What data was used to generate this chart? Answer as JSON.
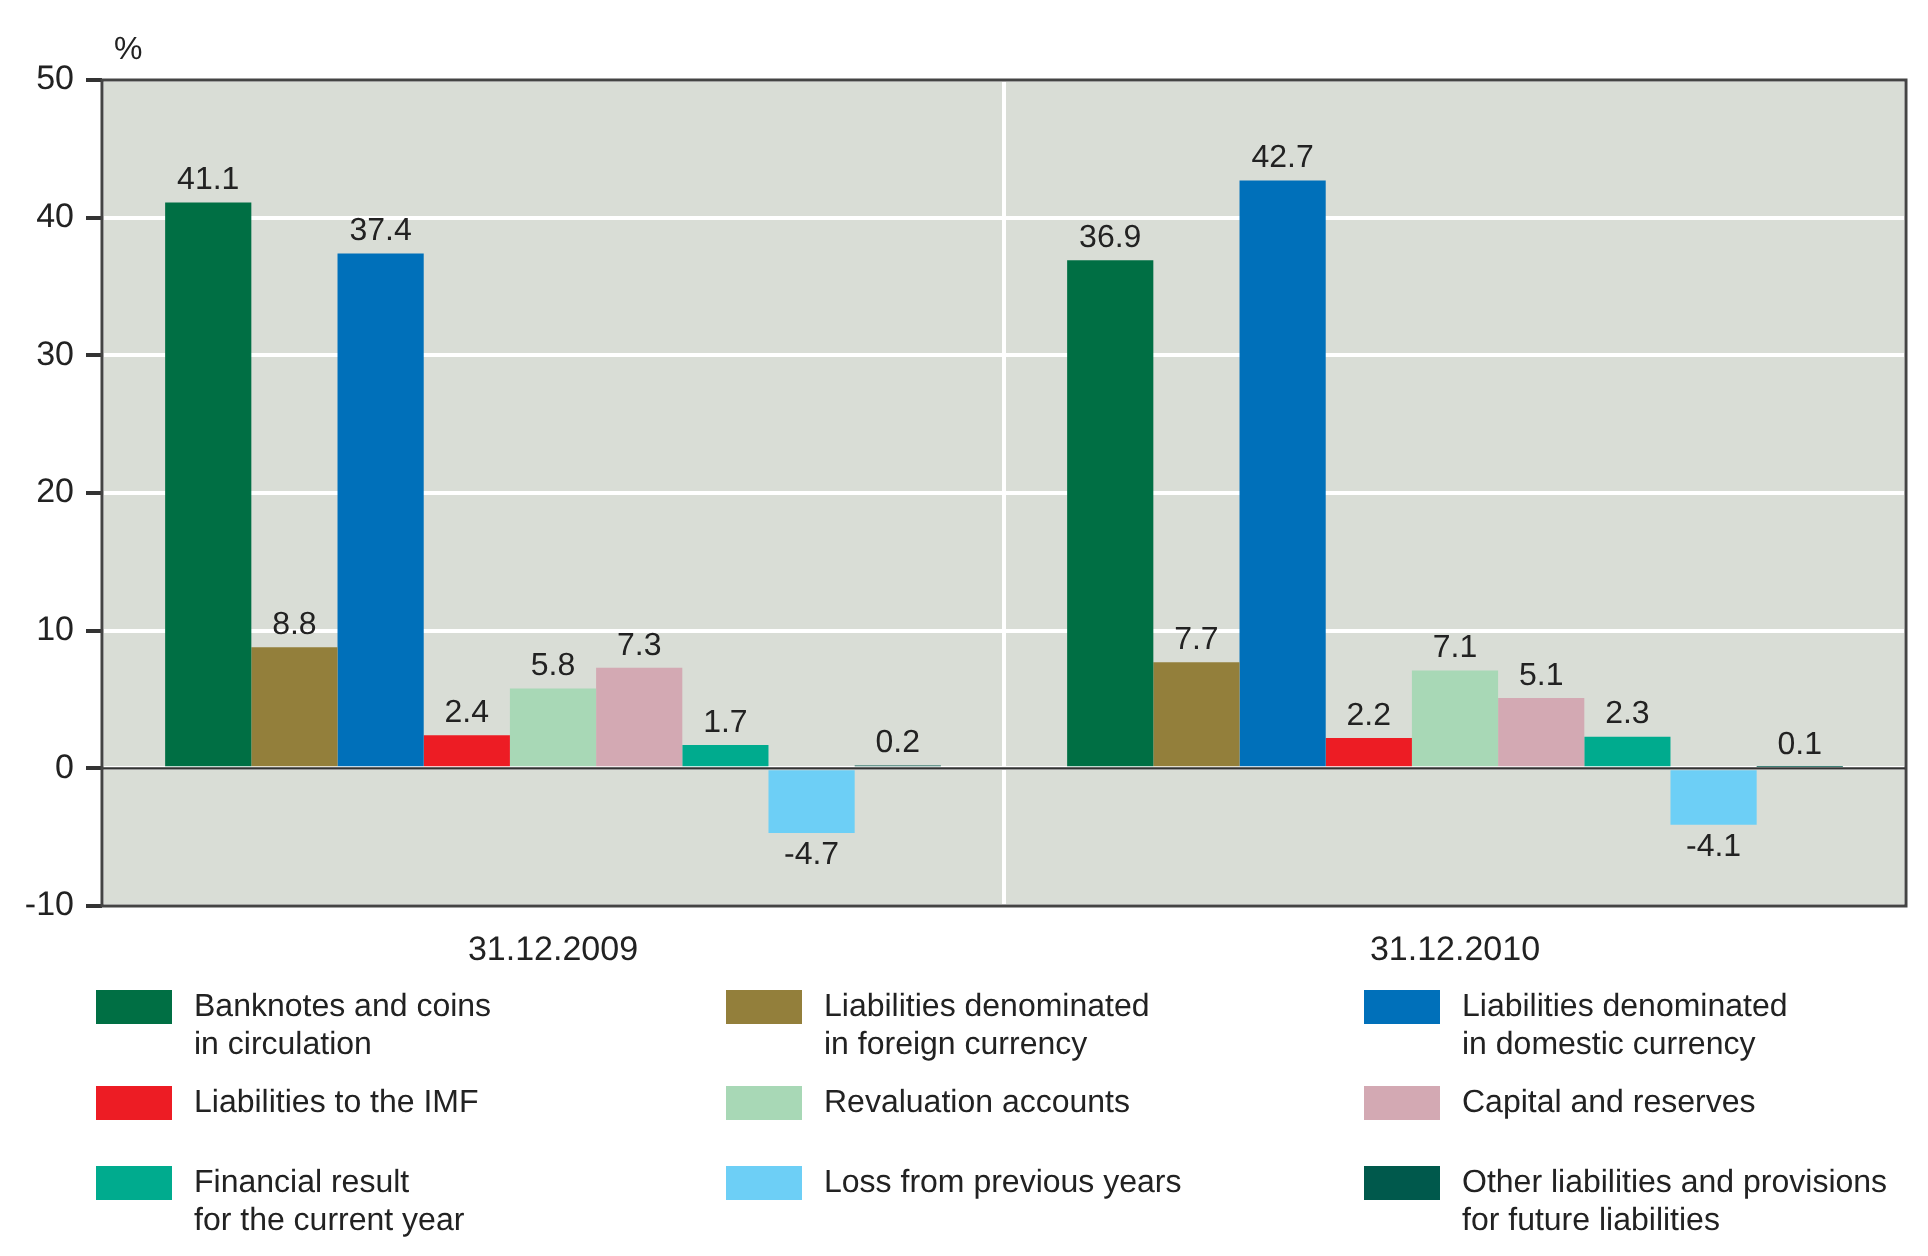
{
  "chart_data": {
    "type": "bar",
    "ylabel": "%",
    "categories": [
      "31.12.2009",
      "31.12.2010"
    ],
    "series": [
      {
        "name": "Banknotes and coins\nin circulation",
        "color": "#006f44",
        "values": [
          41.1,
          36.9
        ]
      },
      {
        "name": "Liabilities denominated\nin foreign currency",
        "color": "#937f3b",
        "values": [
          8.8,
          7.7
        ]
      },
      {
        "name": "Liabilities denominated\nin domestic currency",
        "color": "#0070ba",
        "values": [
          37.4,
          42.7
        ]
      },
      {
        "name": "Liabilities to the IMF",
        "color": "#ed1c24",
        "values": [
          2.4,
          2.2
        ]
      },
      {
        "name": "Revaluation accounts",
        "color": "#a8d8b6",
        "values": [
          5.8,
          7.1
        ]
      },
      {
        "name": "Capital and reserves",
        "color": "#d3a9b3",
        "values": [
          7.3,
          5.1
        ]
      },
      {
        "name": "Financial result\nfor the current year",
        "color": "#00ab8e",
        "values": [
          1.7,
          2.3
        ]
      },
      {
        "name": "Loss from previous years",
        "color": "#6dcff6",
        "values": [
          -4.7,
          -4.1
        ]
      },
      {
        "name": "Other liabilities and provisions\nfor future liabilities",
        "color": "#00594c",
        "values": [
          0.2,
          0.1
        ]
      }
    ],
    "ylim": [
      -10,
      50
    ],
    "yticks": [
      -10,
      0,
      10,
      20,
      30,
      40,
      50
    ],
    "grid": true,
    "legend": "bottom",
    "data_labels": true
  }
}
